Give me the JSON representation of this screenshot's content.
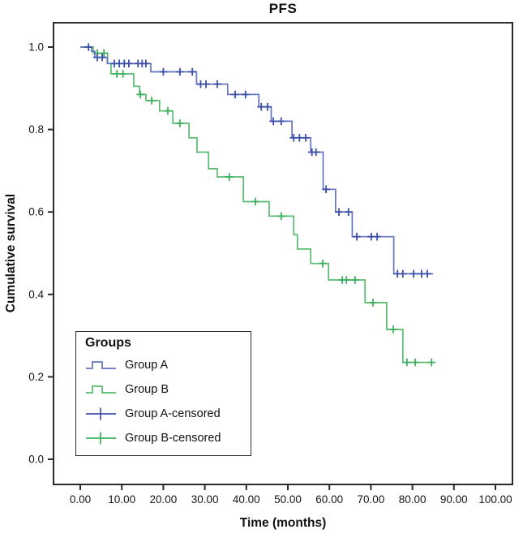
{
  "chart": {
    "title": "PFS",
    "xlabel": "Time (months)",
    "ylabel": "Cumulative survival"
  },
  "legend": {
    "title": "Groups",
    "items": [
      {
        "label": "Group A"
      },
      {
        "label": "Group B"
      },
      {
        "label": "Group A-censored"
      },
      {
        "label": "Group B-censored"
      }
    ]
  },
  "chart_data": {
    "type": "line",
    "subtype": "kaplan-meier-step",
    "title": "PFS",
    "xlabel": "Time (months)",
    "ylabel": "Cumulative survival",
    "xlim": [
      0,
      100
    ],
    "ylim": [
      0.0,
      1.0
    ],
    "grid": false,
    "legend_position": "inside-lower-left",
    "x_ticks": {
      "values": [
        0,
        10,
        20,
        30,
        40,
        50,
        60,
        70,
        80,
        90,
        100
      ],
      "labels": [
        "0.00",
        "10.00",
        "20.00",
        "30.00",
        "40.00",
        "50.00",
        "60.00",
        "70.00",
        "80.00",
        "90.00",
        "100.00"
      ]
    },
    "y_ticks": {
      "values": [
        1.0,
        0.8,
        0.6,
        0.4,
        0.2,
        0.0
      ],
      "labels": [
        "1.0",
        "0.8",
        "0.6",
        "0.4",
        "0.2",
        "0.0"
      ]
    },
    "axis_color": "#2b2b2b",
    "series": [
      {
        "name": "Group A",
        "color": "#6674c3",
        "censor_color": "#3c50aa",
        "end_time": 85,
        "steps": [
          [
            0,
            1.0
          ],
          [
            2.7,
            0.99
          ],
          [
            3.5,
            0.975
          ],
          [
            6.5,
            0.96
          ],
          [
            17,
            0.94
          ],
          [
            28,
            0.91
          ],
          [
            35.5,
            0.885
          ],
          [
            43,
            0.855
          ],
          [
            46,
            0.82
          ],
          [
            51,
            0.78
          ],
          [
            55.5,
            0.745
          ],
          [
            58.5,
            0.655
          ],
          [
            61.5,
            0.6
          ],
          [
            65.5,
            0.54
          ],
          [
            75.5,
            0.45
          ]
        ],
        "censored": [
          [
            2,
            1.0
          ],
          [
            4.1,
            0.975
          ],
          [
            5.3,
            0.975
          ],
          [
            8.2,
            0.96
          ],
          [
            9.4,
            0.96
          ],
          [
            10.6,
            0.96
          ],
          [
            11.7,
            0.96
          ],
          [
            13.9,
            0.96
          ],
          [
            14.9,
            0.96
          ],
          [
            15.8,
            0.96
          ],
          [
            20,
            0.94
          ],
          [
            24,
            0.94
          ],
          [
            27,
            0.94
          ],
          [
            29,
            0.91
          ],
          [
            30.3,
            0.91
          ],
          [
            33,
            0.91
          ],
          [
            37.3,
            0.885
          ],
          [
            39.8,
            0.885
          ],
          [
            43.6,
            0.855
          ],
          [
            45.1,
            0.855
          ],
          [
            46.5,
            0.82
          ],
          [
            48.4,
            0.82
          ],
          [
            51.4,
            0.78
          ],
          [
            52.8,
            0.78
          ],
          [
            54.3,
            0.78
          ],
          [
            55.8,
            0.745
          ],
          [
            56.8,
            0.745
          ],
          [
            59.2,
            0.655
          ],
          [
            62.3,
            0.6
          ],
          [
            64.6,
            0.6
          ],
          [
            66.6,
            0.54
          ],
          [
            70.1,
            0.54
          ],
          [
            71.5,
            0.54
          ],
          [
            76.4,
            0.45
          ],
          [
            77.7,
            0.45
          ],
          [
            80.3,
            0.45
          ],
          [
            82.2,
            0.45
          ],
          [
            83.6,
            0.45
          ]
        ]
      },
      {
        "name": "Group B",
        "color": "#58bb6e",
        "censor_color": "#3cb05e",
        "end_time": 85,
        "steps": [
          [
            0,
            1.0
          ],
          [
            3.1,
            0.985
          ],
          [
            6.6,
            0.96
          ],
          [
            7.4,
            0.935
          ],
          [
            12.9,
            0.905
          ],
          [
            14.3,
            0.885
          ],
          [
            15.8,
            0.87
          ],
          [
            19.1,
            0.845
          ],
          [
            22.3,
            0.815
          ],
          [
            26.2,
            0.78
          ],
          [
            28.1,
            0.745
          ],
          [
            30.9,
            0.705
          ],
          [
            33,
            0.685
          ],
          [
            39.3,
            0.625
          ],
          [
            45.5,
            0.59
          ],
          [
            51.4,
            0.545
          ],
          [
            52.3,
            0.51
          ],
          [
            55.5,
            0.475
          ],
          [
            59.8,
            0.435
          ],
          [
            68.6,
            0.38
          ],
          [
            73.8,
            0.315
          ],
          [
            77.7,
            0.235
          ]
        ],
        "censored": [
          [
            4.1,
            0.985
          ],
          [
            5.7,
            0.985
          ],
          [
            8.8,
            0.935
          ],
          [
            10.3,
            0.935
          ],
          [
            14.5,
            0.885
          ],
          [
            17.2,
            0.87
          ],
          [
            21.1,
            0.845
          ],
          [
            24,
            0.815
          ],
          [
            35.9,
            0.685
          ],
          [
            42.2,
            0.625
          ],
          [
            48.4,
            0.59
          ],
          [
            58.4,
            0.475
          ],
          [
            63.1,
            0.435
          ],
          [
            64.1,
            0.435
          ],
          [
            66.2,
            0.435
          ],
          [
            70.5,
            0.38
          ],
          [
            75.4,
            0.315
          ],
          [
            78.7,
            0.235
          ],
          [
            80.7,
            0.235
          ],
          [
            84.6,
            0.235
          ]
        ]
      }
    ]
  }
}
